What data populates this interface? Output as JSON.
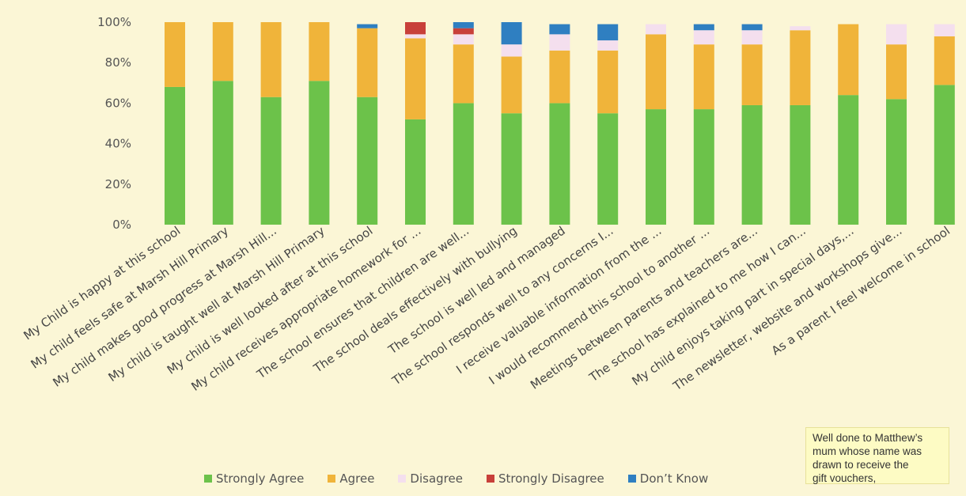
{
  "chart_data": {
    "type": "bar",
    "stacked": true,
    "y_tick_labels": [
      "0%",
      "20%",
      "40%",
      "60%",
      "80%",
      "100%"
    ],
    "ylim": [
      0,
      100
    ],
    "grid": false,
    "legend_placement": "bottom",
    "categories": [
      "My Child is happy at this school",
      "My child feels safe at Marsh Hill Primary",
      "My child makes good progress at Marsh Hill...",
      "My child is taught well at Marsh Hill Primary",
      "My child is well looked after at this school",
      "My child receives appropriate homework for ...",
      "The school ensures that children are well...",
      "The school deals effectively with bullying",
      "The school is well led and managed",
      "The school responds well to any concerns I...",
      "I receive valuable information from the ...",
      "I would recommend this school to another ...",
      "Meetings between parents and teachers are...",
      "The school has explained to me how I can...",
      "My child enjoys taking part in special days,...",
      "The newsletter, website and workshops give...",
      "As a parent I feel welcome in school"
    ],
    "series": [
      {
        "name": "Strongly Agree",
        "color": "#6cc24a",
        "values": [
          68,
          71,
          63,
          71,
          63,
          52,
          60,
          55,
          60,
          55,
          57,
          57,
          59,
          59,
          64,
          62,
          69
        ]
      },
      {
        "name": "Agree",
        "color": "#f0b43a",
        "values": [
          32,
          29,
          37,
          29,
          34,
          40,
          29,
          28,
          26,
          31,
          37,
          32,
          30,
          37,
          35,
          27,
          24
        ]
      },
      {
        "name": "Disagree",
        "color": "#f4dfee",
        "values": [
          0,
          0,
          0,
          0,
          0,
          2,
          5,
          6,
          8,
          5,
          5,
          7,
          7,
          2,
          0,
          10,
          6
        ]
      },
      {
        "name": "Strongly Disagree",
        "color": "#c8403a",
        "values": [
          0,
          0,
          0,
          0,
          0,
          6,
          3,
          0,
          0,
          0,
          0,
          0,
          0,
          0,
          0,
          0,
          0
        ]
      },
      {
        "name": "Don't Know",
        "color": "#2f7fc1",
        "values": [
          0,
          0,
          0,
          0,
          2,
          0,
          3,
          11,
          5,
          8,
          0,
          3,
          3,
          0,
          0,
          0,
          0
        ]
      }
    ]
  },
  "legend": [
    {
      "label": "Strongly Agree",
      "color": "#6cc24a"
    },
    {
      "label": "Agree",
      "color": "#f0b43a"
    },
    {
      "label": "Disagree",
      "color": "#f4dfee"
    },
    {
      "label": "Strongly Disagree",
      "color": "#c8403a"
    },
    {
      "label": "Don’t Know",
      "color": "#2f7fc1"
    }
  ],
  "note": {
    "line1": "Well done to Matthew’s",
    "line2": "mum whose name was",
    "line3": "drawn to receive the",
    "line4": "gift vouchers,"
  }
}
